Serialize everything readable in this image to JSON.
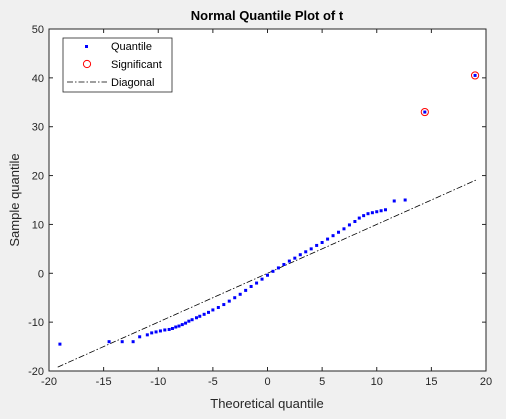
{
  "chart_data": {
    "type": "scatter",
    "title": "Normal Quantile Plot of t",
    "xlabel": "Theoretical quantile",
    "ylabel": "Sample quantile",
    "xlim": [
      -20,
      20
    ],
    "ylim": [
      -20,
      50
    ],
    "xticks": [
      "-20",
      "-15",
      "-10",
      "-5",
      "0",
      "5",
      "10",
      "15",
      "20"
    ],
    "yticks": [
      "-20",
      "-10",
      "0",
      "10",
      "20",
      "30",
      "40",
      "50"
    ],
    "grid": false,
    "legend_position": "top-left",
    "series": [
      {
        "name": "Quantile",
        "marker": "square-dot",
        "color": "#0000ff",
        "points": [
          [
            -19.0,
            -14.5
          ],
          [
            -14.5,
            -14.0
          ],
          [
            -13.3,
            -14.0
          ],
          [
            -12.3,
            -14.0
          ],
          [
            -11.7,
            -13.0
          ],
          [
            -11.0,
            -12.6
          ],
          [
            -10.6,
            -12.2
          ],
          [
            -10.2,
            -12.0
          ],
          [
            -9.8,
            -11.8
          ],
          [
            -9.4,
            -11.6
          ],
          [
            -9.0,
            -11.5
          ],
          [
            -8.7,
            -11.3
          ],
          [
            -8.4,
            -11.0
          ],
          [
            -8.1,
            -10.8
          ],
          [
            -7.8,
            -10.5
          ],
          [
            -7.5,
            -10.2
          ],
          [
            -7.2,
            -9.8
          ],
          [
            -6.9,
            -9.5
          ],
          [
            -6.5,
            -9.1
          ],
          [
            -6.2,
            -8.8
          ],
          [
            -5.8,
            -8.4
          ],
          [
            -5.4,
            -8.0
          ],
          [
            -5.0,
            -7.5
          ],
          [
            -4.5,
            -7.0
          ],
          [
            -4.0,
            -6.4
          ],
          [
            -3.5,
            -5.7
          ],
          [
            -3.0,
            -5.0
          ],
          [
            -2.5,
            -4.3
          ],
          [
            -2.0,
            -3.5
          ],
          [
            -1.5,
            -2.7
          ],
          [
            -1.0,
            -2.0
          ],
          [
            -0.5,
            -1.2
          ],
          [
            0.0,
            -0.4
          ],
          [
            0.5,
            0.4
          ],
          [
            1.0,
            1.1
          ],
          [
            1.5,
            1.8
          ],
          [
            2.0,
            2.5
          ],
          [
            2.5,
            3.1
          ],
          [
            3.0,
            3.8
          ],
          [
            3.5,
            4.4
          ],
          [
            4.0,
            5.0
          ],
          [
            4.5,
            5.7
          ],
          [
            5.0,
            6.3
          ],
          [
            5.5,
            7.0
          ],
          [
            6.0,
            7.7
          ],
          [
            6.5,
            8.4
          ],
          [
            7.0,
            9.1
          ],
          [
            7.5,
            9.9
          ],
          [
            8.0,
            10.6
          ],
          [
            8.4,
            11.3
          ],
          [
            8.8,
            11.8
          ],
          [
            9.2,
            12.2
          ],
          [
            9.6,
            12.4
          ],
          [
            10.0,
            12.6
          ],
          [
            10.4,
            12.8
          ],
          [
            10.8,
            13.0
          ],
          [
            11.6,
            14.8
          ],
          [
            12.6,
            15.0
          ]
        ]
      },
      {
        "name": "Significant",
        "marker": "circle",
        "color": "#ff0000",
        "points": [
          [
            14.4,
            33.0
          ],
          [
            19.0,
            40.5
          ]
        ]
      },
      {
        "name": "Diagonal",
        "marker": "dash-dot-line",
        "color": "#000000",
        "points": [
          [
            -19.2,
            -19.2
          ],
          [
            19.2,
            19.2
          ]
        ]
      }
    ]
  }
}
